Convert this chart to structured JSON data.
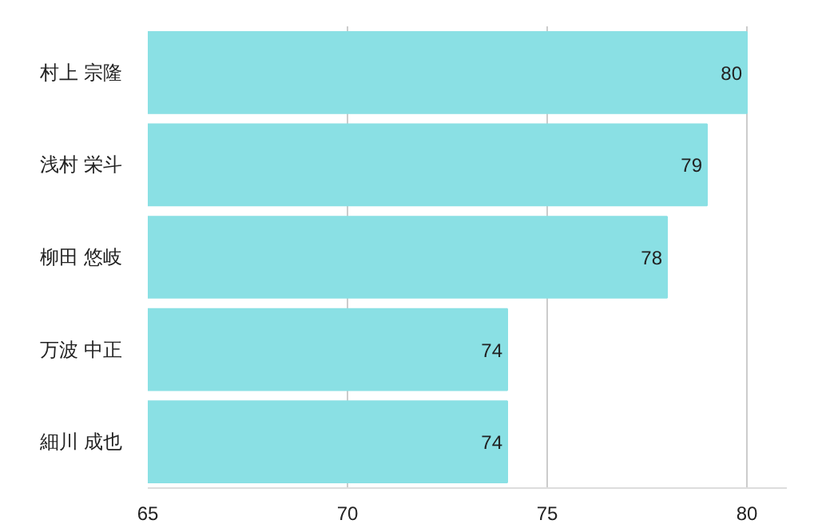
{
  "chart_data": {
    "type": "bar",
    "orientation": "horizontal",
    "categories": [
      "村上 宗隆",
      "浅村 栄斗",
      "柳田 悠岐",
      "万波 中正",
      "細川 成也"
    ],
    "values": [
      80,
      79,
      78,
      74,
      74
    ],
    "color": "#8ae0e4",
    "xlim": [
      65,
      81
    ],
    "xticks": [
      65,
      70,
      75,
      80
    ],
    "grid": "x",
    "data_labels": true
  }
}
